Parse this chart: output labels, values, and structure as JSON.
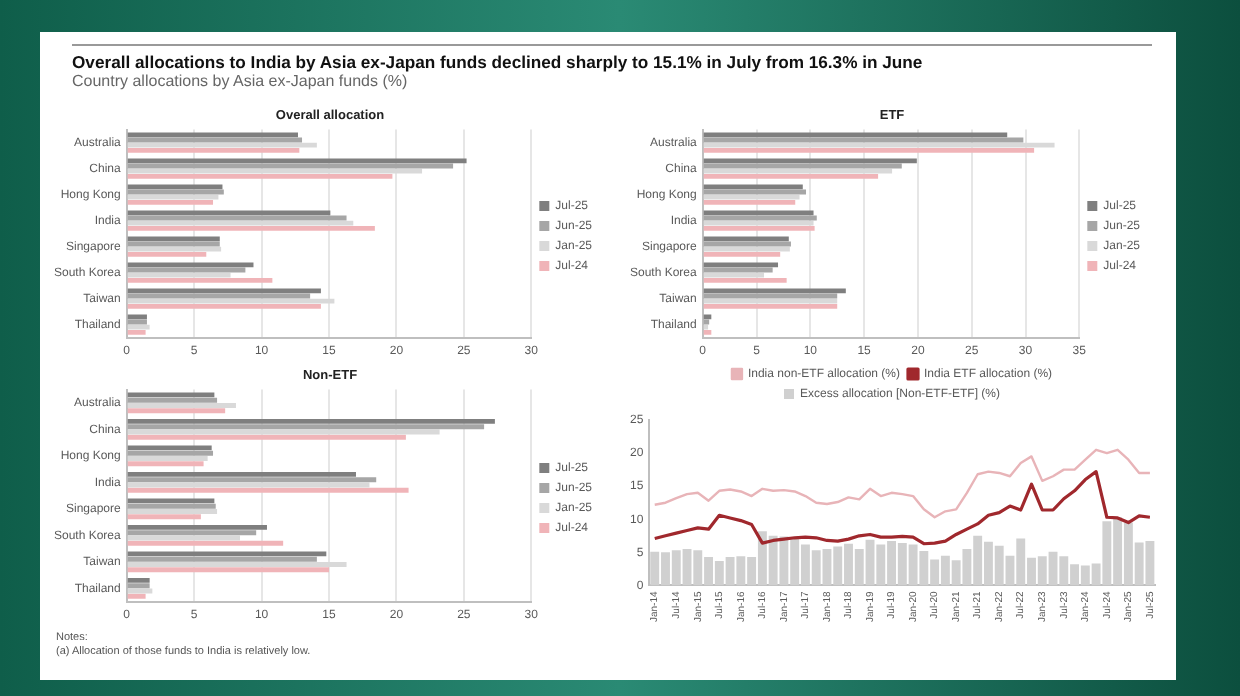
{
  "chart_data": [
    {
      "type": "other",
      "title": "Overall allocations to India by Asia ex-Japan funds declined sharply to 15.1% in July from 16.3% in June",
      "subtitle": "Country allocations by Asia ex-Japan funds (%)",
      "annotations": [
        "Notes:",
        "(a) Allocation of those funds to India is relatively low."
      ]
    },
    {
      "type": "bar",
      "title": "Overall allocation",
      "orientation": "horizontal",
      "categories": [
        "Australia",
        "China",
        "Hong Kong",
        "India",
        "Singapore",
        "South Korea",
        "Taiwan",
        "Thailand"
      ],
      "series": [
        {
          "name": "Jul-25",
          "color": "#7f7f7f",
          "values": [
            12.7,
            25.2,
            7.1,
            15.1,
            6.9,
            9.4,
            14.4,
            1.5
          ]
        },
        {
          "name": "Jun-25",
          "color": "#a6a6a6",
          "values": [
            13.0,
            24.2,
            7.2,
            16.3,
            6.9,
            8.8,
            13.6,
            1.5
          ]
        },
        {
          "name": "Jan-25",
          "color": "#d9d9d9",
          "values": [
            14.1,
            21.9,
            6.8,
            16.8,
            7.0,
            7.7,
            15.4,
            1.7
          ]
        },
        {
          "name": "Jul-24",
          "color": "#f0b4b8",
          "values": [
            12.8,
            19.7,
            6.4,
            18.4,
            5.9,
            10.8,
            14.4,
            1.4
          ]
        }
      ],
      "xlim": [
        0,
        30
      ],
      "xticks": [
        0,
        5,
        10,
        15,
        20,
        25,
        30
      ],
      "grid": "x",
      "legend": "right"
    },
    {
      "type": "bar",
      "title": "ETF",
      "orientation": "horizontal",
      "categories": [
        "Australia",
        "China",
        "Hong Kong",
        "India",
        "Singapore",
        "South Korea",
        "Taiwan",
        "Thailand"
      ],
      "series": [
        {
          "name": "Jul-25",
          "color": "#7f7f7f",
          "values": [
            28.3,
            19.9,
            9.3,
            10.3,
            8.0,
            7.0,
            13.3,
            0.8
          ]
        },
        {
          "name": "Jun-25",
          "color": "#a6a6a6",
          "values": [
            29.8,
            18.5,
            9.6,
            10.6,
            8.2,
            6.5,
            12.5,
            0.6
          ]
        },
        {
          "name": "Jan-25",
          "color": "#d9d9d9",
          "values": [
            32.7,
            17.6,
            9.0,
            10.3,
            8.1,
            5.7,
            12.5,
            0.5
          ]
        },
        {
          "name": "Jul-24",
          "color": "#f0b4b8",
          "values": [
            30.8,
            16.3,
            8.6,
            10.4,
            7.2,
            7.8,
            12.5,
            0.8
          ]
        }
      ],
      "xlim": [
        0,
        35
      ],
      "xticks": [
        0,
        5,
        10,
        15,
        20,
        25,
        30,
        35
      ],
      "grid": "x",
      "legend": "right"
    },
    {
      "type": "bar",
      "title": "Non-ETF",
      "orientation": "horizontal",
      "categories": [
        "Australia",
        "China",
        "Hong Kong",
        "India",
        "Singapore",
        "South Korea",
        "Taiwan",
        "Thailand"
      ],
      "series": [
        {
          "name": "Jul-25",
          "color": "#7f7f7f",
          "values": [
            6.5,
            27.3,
            6.3,
            17.0,
            6.5,
            10.4,
            14.8,
            1.7
          ]
        },
        {
          "name": "Jun-25",
          "color": "#a6a6a6",
          "values": [
            6.7,
            26.5,
            6.4,
            18.5,
            6.6,
            9.6,
            14.1,
            1.7
          ]
        },
        {
          "name": "Jan-25",
          "color": "#d9d9d9",
          "values": [
            8.1,
            23.2,
            6.0,
            18.0,
            6.7,
            8.4,
            16.3,
            1.9
          ]
        },
        {
          "name": "Jul-24",
          "color": "#f0b4b8",
          "values": [
            7.3,
            20.7,
            5.7,
            20.9,
            5.5,
            11.6,
            15.0,
            1.4
          ]
        }
      ],
      "xlim": [
        0,
        30
      ],
      "xticks": [
        0,
        5,
        10,
        15,
        20,
        25,
        30
      ],
      "grid": "x",
      "legend": "right"
    },
    {
      "type": "line",
      "categories": [
        "Jan-14",
        null,
        "Jul-14",
        null,
        "Jan-15",
        null,
        "Jul-15",
        null,
        "Jan-16",
        null,
        "Jul-16",
        null,
        "Jan-17",
        null,
        "Jul-17",
        null,
        "Jan-18",
        null,
        "Jul-18",
        null,
        "Jan-19",
        null,
        "Jul-19",
        null,
        "Jan-20",
        null,
        "Jul-20",
        null,
        "Jan-21",
        null,
        "Jul-21",
        null,
        "Jan-22",
        null,
        "Jul-22",
        null,
        "Jan-23",
        null,
        "Jul-23",
        null,
        "Jan-24",
        null,
        "Jul-24",
        null,
        "Jan-25",
        null,
        "Jul-25"
      ],
      "series": [
        {
          "name": "Excess allocation [Non-ETF-ETF] (%)",
          "type": "bar",
          "color": "#d0d0d0",
          "values": [
            5.1,
            5.0,
            5.3,
            5.5,
            5.3,
            4.3,
            3.7,
            4.3,
            4.4,
            4.3,
            8.2,
            7.5,
            7.4,
            7.0,
            6.2,
            5.3,
            5.5,
            5.9,
            6.3,
            5.5,
            6.9,
            6.2,
            6.7,
            6.4,
            6.2,
            5.2,
            3.9,
            4.5,
            3.8,
            5.5,
            7.5,
            6.6,
            6.0,
            4.5,
            7.1,
            4.2,
            4.4,
            5.1,
            4.4,
            3.2,
            3.0,
            3.3,
            9.7,
            10.3,
            9.5,
            6.5,
            6.7
          ]
        },
        {
          "name": "India ETF allocation (%)",
          "color": "#a0282d",
          "values": [
            7.1,
            7.5,
            7.9,
            8.3,
            8.7,
            8.5,
            10.6,
            10.2,
            9.8,
            9.2,
            6.4,
            6.8,
            7.0,
            7.2,
            7.3,
            7.2,
            6.8,
            6.7,
            7.0,
            7.5,
            7.7,
            7.3,
            7.3,
            7.4,
            7.3,
            6.3,
            6.4,
            6.7,
            7.7,
            8.5,
            9.3,
            10.6,
            11.0,
            12.0,
            11.4,
            15.3,
            11.4,
            11.4,
            13.1,
            14.3,
            16.0,
            17.2,
            10.3,
            10.2,
            9.5,
            10.5,
            10.3
          ]
        },
        {
          "name": "India non-ETF allocation (%)",
          "color": "#e8b4b8",
          "values": [
            12.2,
            12.5,
            13.2,
            13.8,
            14.0,
            12.8,
            14.3,
            14.5,
            14.2,
            13.5,
            14.6,
            14.3,
            14.4,
            14.2,
            13.5,
            12.5,
            12.3,
            12.6,
            13.3,
            13.0,
            14.6,
            13.5,
            14.0,
            13.8,
            13.5,
            11.5,
            10.3,
            11.2,
            11.5,
            14.0,
            16.8,
            17.2,
            17.0,
            16.5,
            18.5,
            19.5,
            15.8,
            16.5,
            17.5,
            17.5,
            19.0,
            20.5,
            20.0,
            20.5,
            19.0,
            17.0,
            17.0
          ]
        }
      ],
      "ylim": [
        0,
        25
      ],
      "yticks": [
        0,
        5,
        10,
        15,
        20,
        25
      ],
      "legend": "top"
    }
  ]
}
